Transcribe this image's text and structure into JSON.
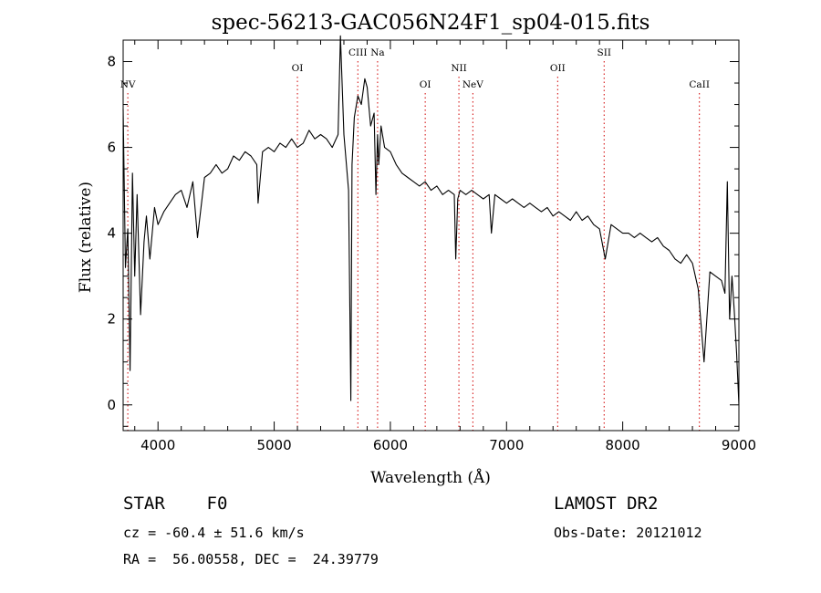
{
  "chart_data": {
    "type": "line",
    "title": "spec-56213-GAC056N24F1_sp04-015.fits",
    "xlabel": "Wavelength (Å)",
    "ylabel": "Flux (relative)",
    "xlim": [
      3700,
      9000
    ],
    "ylim": [
      -0.6,
      8.5
    ],
    "xticks": [
      "4000",
      "5000",
      "6000",
      "7000",
      "8000",
      "9000"
    ],
    "yticks": [
      "0",
      "2",
      "4",
      "6",
      "8"
    ],
    "grid": false,
    "line_color": "#000000",
    "marker_color": "#d00000",
    "series": [
      {
        "x": [
          3700,
          3720,
          3740,
          3760,
          3780,
          3800,
          3820,
          3850,
          3880,
          3900,
          3930,
          3970,
          4000,
          4050,
          4100,
          4150,
          4200,
          4250,
          4300,
          4340,
          4400,
          4450,
          4500,
          4550,
          4600,
          4650,
          4700,
          4750,
          4800,
          4850,
          4861,
          4900,
          4950,
          5000,
          5050,
          5100,
          5150,
          5200,
          5250,
          5300,
          5350,
          5400,
          5450,
          5500,
          5550,
          5570,
          5600,
          5640,
          5660,
          5670,
          5690,
          5720,
          5750,
          5780,
          5800,
          5830,
          5860,
          5876,
          5890,
          5900,
          5920,
          5950,
          6000,
          6050,
          6100,
          6150,
          6200,
          6250,
          6300,
          6350,
          6400,
          6450,
          6500,
          6550,
          6563,
          6580,
          6600,
          6650,
          6700,
          6750,
          6800,
          6850,
          6870,
          6900,
          6950,
          7000,
          7050,
          7100,
          7150,
          7200,
          7250,
          7300,
          7350,
          7400,
          7450,
          7500,
          7550,
          7600,
          7650,
          7700,
          7750,
          7800,
          7850,
          7900,
          7950,
          8000,
          8050,
          8100,
          8150,
          8200,
          8250,
          8300,
          8350,
          8400,
          8450,
          8500,
          8550,
          8600,
          8650,
          8700,
          8750,
          8800,
          8850,
          8880,
          8900,
          8920,
          8940,
          8960,
          8980,
          9000
        ],
        "y": [
          6.9,
          3.2,
          4.1,
          0.8,
          5.4,
          3.0,
          4.9,
          2.1,
          3.8,
          4.4,
          3.4,
          4.6,
          4.2,
          4.5,
          4.7,
          4.9,
          5.0,
          4.6,
          5.2,
          3.9,
          5.3,
          5.4,
          5.6,
          5.4,
          5.5,
          5.8,
          5.7,
          5.9,
          5.8,
          5.6,
          4.7,
          5.9,
          6.0,
          5.9,
          6.1,
          6.0,
          6.2,
          6.0,
          6.1,
          6.4,
          6.2,
          6.3,
          6.2,
          6.0,
          6.3,
          8.6,
          6.3,
          5.0,
          0.1,
          5.6,
          6.7,
          7.2,
          7.0,
          7.6,
          7.4,
          6.5,
          6.8,
          4.9,
          6.3,
          5.6,
          6.5,
          6.0,
          5.9,
          5.6,
          5.4,
          5.3,
          5.2,
          5.1,
          5.2,
          5.0,
          5.1,
          4.9,
          5.0,
          4.9,
          3.4,
          4.8,
          5.0,
          4.9,
          5.0,
          4.9,
          4.8,
          4.9,
          4.0,
          4.9,
          4.8,
          4.7,
          4.8,
          4.7,
          4.6,
          4.7,
          4.6,
          4.5,
          4.6,
          4.4,
          4.5,
          4.4,
          4.3,
          4.5,
          4.3,
          4.4,
          4.2,
          4.1,
          3.4,
          4.2,
          4.1,
          4.0,
          4.0,
          3.9,
          4.0,
          3.9,
          3.8,
          3.9,
          3.7,
          3.6,
          3.4,
          3.3,
          3.5,
          3.3,
          2.7,
          1.0,
          3.1,
          3.0,
          2.9,
          2.6,
          5.2,
          2.0,
          3.0,
          2.2,
          1.2,
          0.0
        ]
      }
    ],
    "lines": [
      {
        "name": "NV",
        "x": 3740,
        "row": 2
      },
      {
        "name": "OI",
        "x": 5200,
        "row": 1
      },
      {
        "name": "CIII",
        "x": 5720,
        "row": 0
      },
      {
        "name": "Na",
        "x": 5890,
        "row": 0
      },
      {
        "name": "OI",
        "x": 6300,
        "row": 2
      },
      {
        "name": "NII",
        "x": 6590,
        "row": 1
      },
      {
        "name": "NeV",
        "x": 6710,
        "row": 2
      },
      {
        "name": "OII",
        "x": 7440,
        "row": 1
      },
      {
        "name": "SII",
        "x": 7840,
        "row": 0
      },
      {
        "name": "CaII",
        "x": 8660,
        "row": 2
      }
    ]
  },
  "info": {
    "class": "STAR",
    "subclass": "F0",
    "survey": "LAMOST DR2",
    "cz": "cz = -60.4 ± 51.6 km/s",
    "obs_date": "Obs-Date: 20121012",
    "radec": "RA =  56.00558, DEC =  24.39779"
  }
}
